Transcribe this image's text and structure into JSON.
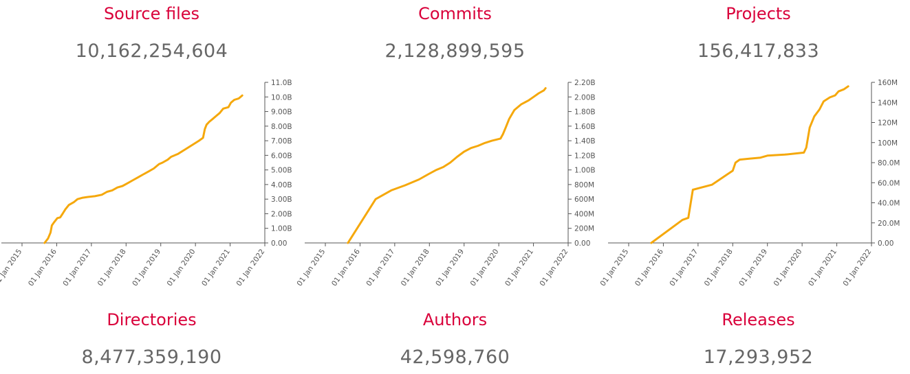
{
  "panels": [
    {
      "title": "Source files",
      "count": "10,162,254,604",
      "bottom_title": "Directories",
      "bottom_count": "8,477,359,190"
    },
    {
      "title": "Commits",
      "count": "2,128,899,595",
      "bottom_title": "Authors",
      "bottom_count": "42,598,760"
    },
    {
      "title": "Projects",
      "count": "156,417,833",
      "bottom_title": "Releases",
      "bottom_count": "17,293,952"
    }
  ],
  "colors": {
    "line": "#f5a80c",
    "title": "#d9003a",
    "count": "#666666",
    "axis": "#555555"
  },
  "chart_data": [
    {
      "type": "line",
      "title": "Source files",
      "x_ticks": [
        "01 Jan 2015",
        "01 Jan 2016",
        "01 Jan 2017",
        "01 Jan 2018",
        "01 Jan 2019",
        "01 Jan 2020",
        "01 Jan 2021",
        "01 Jan 2022"
      ],
      "y_ticks": [
        "0.00",
        "1.00B",
        "2.00B",
        "3.00B",
        "4.00B",
        "5.00B",
        "6.00B",
        "7.00B",
        "8.00B",
        "9.00B",
        "10.0B",
        "11.0B"
      ],
      "xlim": [
        2015.0,
        2022.0
      ],
      "ylim": [
        0,
        11
      ],
      "y_unit": "billions",
      "series": [
        {
          "x": [
            2015.65,
            2015.75,
            2015.82,
            2015.86,
            2015.92,
            2016.02,
            2016.1,
            2016.17,
            2016.25,
            2016.35,
            2016.5,
            2016.6,
            2016.75,
            2016.9,
            2017.1,
            2017.3,
            2017.45,
            2017.6,
            2017.75,
            2017.9,
            2018.05,
            2018.2,
            2018.35,
            2018.5,
            2018.65,
            2018.8,
            2018.95,
            2019.05,
            2019.2,
            2019.3,
            2019.5,
            2019.7,
            2019.9,
            2020.1,
            2020.22,
            2020.27,
            2020.32,
            2020.4,
            2020.5,
            2020.6,
            2020.7,
            2020.8,
            2020.95,
            2021.02,
            2021.12,
            2021.25,
            2021.35
          ],
          "y": [
            0.0,
            0.3,
            0.7,
            1.2,
            1.4,
            1.7,
            1.75,
            2.0,
            2.3,
            2.6,
            2.8,
            3.0,
            3.1,
            3.15,
            3.2,
            3.3,
            3.5,
            3.6,
            3.8,
            3.9,
            4.1,
            4.3,
            4.5,
            4.7,
            4.9,
            5.1,
            5.4,
            5.5,
            5.7,
            5.9,
            6.1,
            6.4,
            6.7,
            7.0,
            7.2,
            7.8,
            8.1,
            8.3,
            8.5,
            8.7,
            8.9,
            9.2,
            9.3,
            9.6,
            9.8,
            9.9,
            10.1
          ]
        }
      ]
    },
    {
      "type": "line",
      "title": "Commits",
      "x_ticks": [
        "01 Jan 2015",
        "01 Jan 2016",
        "01 Jan 2017",
        "01 Jan 2018",
        "01 Jan 2019",
        "01 Jan 2020",
        "01 Jan 2021",
        "01 Jan 2022"
      ],
      "y_ticks": [
        "0.00",
        "200M",
        "400M",
        "600M",
        "800M",
        "1.00B",
        "1.20B",
        "1.40B",
        "1.60B",
        "1.80B",
        "2.00B",
        "2.20B"
      ],
      "xlim": [
        2015.0,
        2022.0
      ],
      "ylim": [
        0,
        2200
      ],
      "y_unit": "millions",
      "series": [
        {
          "x": [
            2015.65,
            2016.45,
            2016.9,
            2017.3,
            2017.7,
            2018.0,
            2018.2,
            2018.4,
            2018.6,
            2018.8,
            2019.0,
            2019.2,
            2019.4,
            2019.6,
            2019.8,
            2020.05,
            2020.12,
            2020.2,
            2020.3,
            2020.45,
            2020.65,
            2020.85,
            2021.0,
            2021.15,
            2021.3,
            2021.35
          ],
          "y": [
            0,
            600,
            720,
            790,
            870,
            950,
            1000,
            1040,
            1100,
            1180,
            1250,
            1300,
            1330,
            1370,
            1400,
            1430,
            1490,
            1580,
            1700,
            1820,
            1900,
            1950,
            2000,
            2050,
            2090,
            2120
          ]
        }
      ]
    },
    {
      "type": "line",
      "title": "Projects",
      "x_ticks": [
        "01 Jan 2015",
        "01 Jan 2016",
        "01 Jan 2017",
        "01 Jan 2018",
        "01 Jan 2019",
        "01 Jan 2020",
        "01 Jan 2021",
        "01 Jan 2022"
      ],
      "y_ticks": [
        "0.00",
        "20.0M",
        "40.0M",
        "60.0M",
        "80.0M",
        "100M",
        "120M",
        "140M",
        "160M"
      ],
      "xlim": [
        2015.0,
        2022.0
      ],
      "ylim": [
        0,
        160
      ],
      "y_unit": "millions",
      "series": [
        {
          "x": [
            2015.65,
            2016.55,
            2016.72,
            2016.85,
            2017.4,
            2018.0,
            2018.08,
            2018.2,
            2018.5,
            2018.8,
            2019.0,
            2019.5,
            2020.05,
            2020.12,
            2020.22,
            2020.35,
            2020.5,
            2020.62,
            2020.8,
            2020.95,
            2021.05,
            2021.2,
            2021.33
          ],
          "y": [
            0,
            23,
            25,
            53,
            58,
            72,
            80,
            83,
            84,
            85,
            87,
            88,
            90,
            95,
            115,
            126,
            133,
            141,
            145,
            147,
            151,
            153,
            156
          ]
        }
      ]
    }
  ]
}
